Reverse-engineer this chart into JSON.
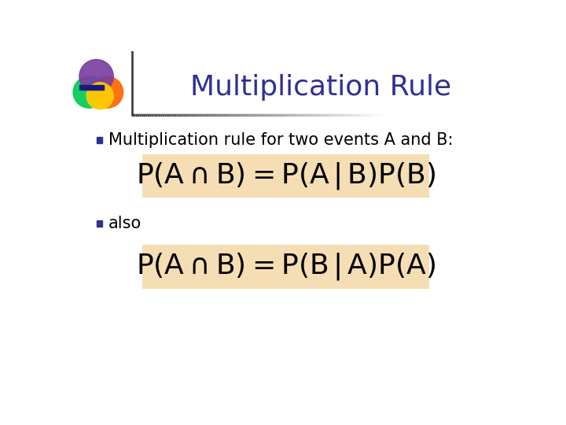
{
  "title": "Multiplication Rule",
  "title_color": "#2E3191",
  "title_fontsize": 26,
  "bullet_color": "#2E3191",
  "bullet1_text": "Multiplication rule for two events A and B:",
  "bullet2_text": "also",
  "formula1": "$\\mathregular{P(A\\,}\\cap\\mathregular{\\,B)\\,=P(A\\,|\\,B)P(B)}$",
  "formula2": "$\\mathregular{P(A\\,}\\cap\\mathregular{\\,B)\\,=P(B\\,|\\,A)P(A)}$",
  "formula_bg_color": "#F5DEB3",
  "background_color": "#FFFFFF",
  "text_fontsize": 15,
  "formula_fontsize": 26,
  "header_line_color": "#555555",
  "circle_purple": "#7B3FA0",
  "circle_green": "#00CC55",
  "circle_orange": "#FF6600",
  "circle_yellow": "#FFCC00"
}
